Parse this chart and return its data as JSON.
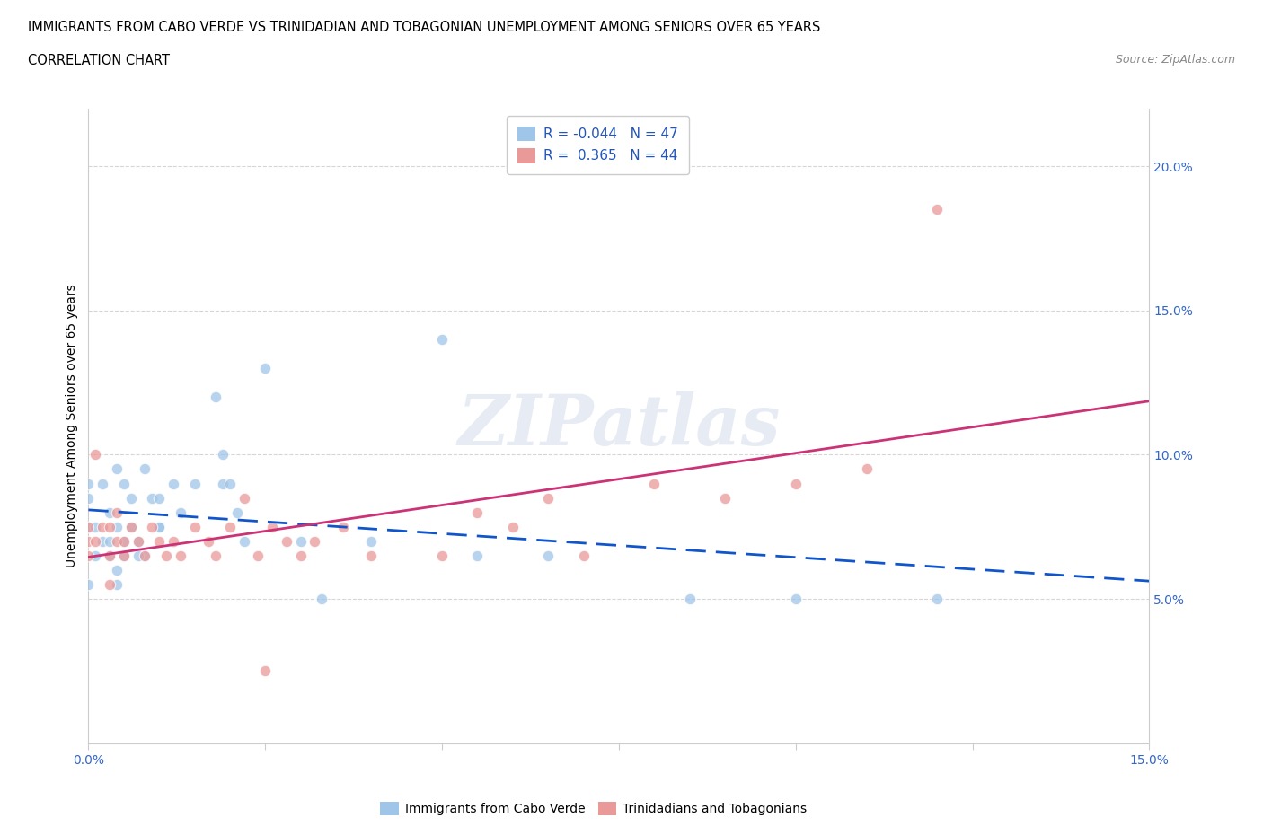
{
  "title_line1": "IMMIGRANTS FROM CABO VERDE VS TRINIDADIAN AND TOBAGONIAN UNEMPLOYMENT AMONG SENIORS OVER 65 YEARS",
  "title_line2": "CORRELATION CHART",
  "source_text": "Source: ZipAtlas.com",
  "ylabel": "Unemployment Among Seniors over 65 years",
  "xlim": [
    0.0,
    0.15
  ],
  "ylim": [
    0.0,
    0.22
  ],
  "yticks": [
    0.05,
    0.1,
    0.15,
    0.2
  ],
  "ytick_labels": [
    "5.0%",
    "10.0%",
    "15.0%",
    "20.0%"
  ],
  "xtick_pos": [
    0.0,
    0.025,
    0.05,
    0.075,
    0.1,
    0.125,
    0.15
  ],
  "xtick_labels": [
    "0.0%",
    "",
    "",
    "",
    "",
    "",
    "15.0%"
  ],
  "cabo_verde_R": -0.044,
  "cabo_verde_N": 47,
  "trinidad_R": 0.365,
  "trinidad_N": 44,
  "cabo_verde_color": "#9fc5e8",
  "trinidad_color": "#ea9999",
  "cabo_verde_line_color": "#1155cc",
  "trinidad_line_color": "#cc3377",
  "cabo_verde_line_dash": [
    8,
    4
  ],
  "watermark": "ZIPatlas",
  "cabo_verde_x": [
    0.0,
    0.0,
    0.0,
    0.001,
    0.001,
    0.002,
    0.002,
    0.003,
    0.003,
    0.003,
    0.004,
    0.004,
    0.004,
    0.005,
    0.005,
    0.005,
    0.006,
    0.006,
    0.007,
    0.008,
    0.008,
    0.009,
    0.01,
    0.01,
    0.01,
    0.012,
    0.013,
    0.015,
    0.018,
    0.019,
    0.019,
    0.02,
    0.021,
    0.022,
    0.025,
    0.03,
    0.033,
    0.04,
    0.05,
    0.055,
    0.065,
    0.085,
    0.1,
    0.12,
    0.0,
    0.004,
    0.007
  ],
  "cabo_verde_y": [
    0.075,
    0.085,
    0.09,
    0.065,
    0.075,
    0.07,
    0.09,
    0.065,
    0.07,
    0.08,
    0.06,
    0.075,
    0.095,
    0.065,
    0.07,
    0.09,
    0.075,
    0.085,
    0.07,
    0.065,
    0.095,
    0.085,
    0.075,
    0.085,
    0.075,
    0.09,
    0.08,
    0.09,
    0.12,
    0.09,
    0.1,
    0.09,
    0.08,
    0.07,
    0.13,
    0.07,
    0.05,
    0.07,
    0.14,
    0.065,
    0.065,
    0.05,
    0.05,
    0.05,
    0.055,
    0.055,
    0.065
  ],
  "trinidad_x": [
    0.0,
    0.0,
    0.0,
    0.001,
    0.001,
    0.002,
    0.003,
    0.003,
    0.004,
    0.004,
    0.005,
    0.005,
    0.006,
    0.007,
    0.008,
    0.009,
    0.01,
    0.011,
    0.012,
    0.013,
    0.015,
    0.017,
    0.018,
    0.02,
    0.022,
    0.024,
    0.026,
    0.028,
    0.03,
    0.032,
    0.036,
    0.04,
    0.05,
    0.055,
    0.06,
    0.065,
    0.07,
    0.08,
    0.09,
    0.1,
    0.11,
    0.12,
    0.003,
    0.025
  ],
  "trinidad_y": [
    0.065,
    0.07,
    0.075,
    0.07,
    0.1,
    0.075,
    0.065,
    0.075,
    0.07,
    0.08,
    0.065,
    0.07,
    0.075,
    0.07,
    0.065,
    0.075,
    0.07,
    0.065,
    0.07,
    0.065,
    0.075,
    0.07,
    0.065,
    0.075,
    0.085,
    0.065,
    0.075,
    0.07,
    0.065,
    0.07,
    0.075,
    0.065,
    0.065,
    0.08,
    0.075,
    0.085,
    0.065,
    0.09,
    0.085,
    0.09,
    0.095,
    0.185,
    0.055,
    0.025
  ]
}
